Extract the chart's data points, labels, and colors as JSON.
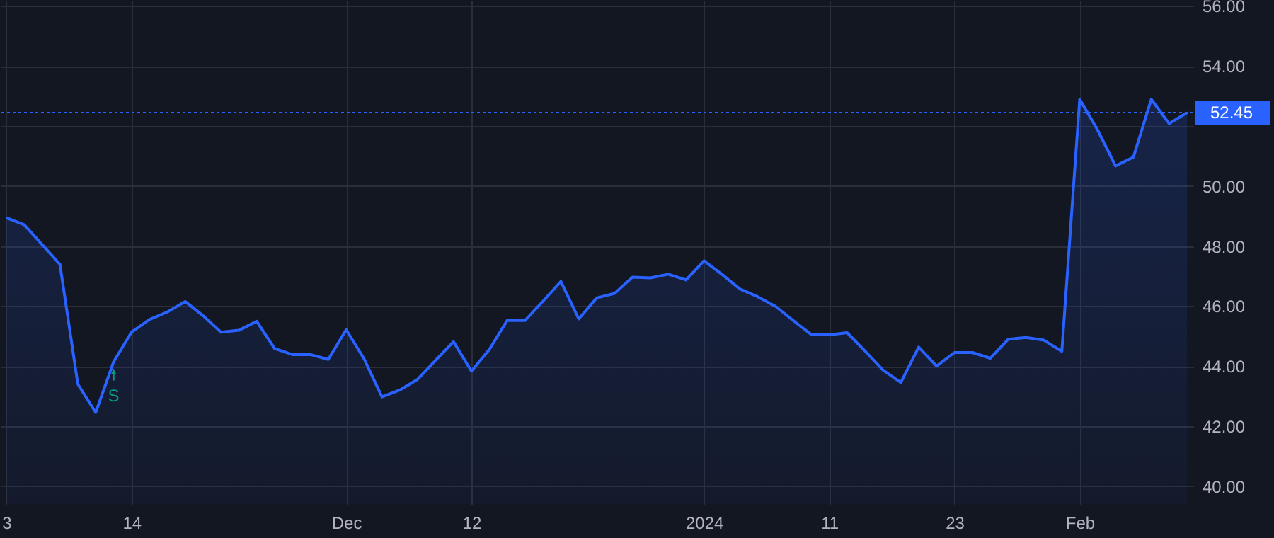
{
  "chart_data": {
    "type": "area",
    "categories": [
      "3",
      null,
      null,
      null,
      null,
      null,
      null,
      "14",
      null,
      null,
      null,
      null,
      null,
      null,
      null,
      null,
      null,
      null,
      null,
      "Dec",
      null,
      null,
      null,
      null,
      null,
      null,
      "12",
      null,
      null,
      null,
      null,
      null,
      null,
      null,
      null,
      null,
      null,
      null,
      null,
      "2024",
      null,
      null,
      null,
      null,
      null,
      null,
      "11",
      null,
      null,
      null,
      null,
      null,
      null,
      "23",
      null,
      null,
      null,
      null,
      null,
      null,
      "Feb",
      null,
      null,
      null,
      null,
      null,
      null
    ],
    "series": [
      {
        "color": "#2962ff",
        "values": [
          48.94,
          48.71,
          48.05,
          47.39,
          43.4,
          42.45,
          44.14,
          45.13,
          45.55,
          45.8,
          46.15,
          45.68,
          45.13,
          45.19,
          45.49,
          44.58,
          44.38,
          44.38,
          44.22,
          45.21,
          44.24,
          42.97,
          43.2,
          43.56,
          44.19,
          44.81,
          43.83,
          44.55,
          45.52,
          45.52,
          46.16,
          46.82,
          45.57,
          46.27,
          46.42,
          46.96,
          46.94,
          47.06,
          46.87,
          47.51,
          47.06,
          46.57,
          46.31,
          45.99,
          45.51,
          45.05,
          45.04,
          45.11,
          44.5,
          43.87,
          43.45,
          44.63,
          44.0,
          44.45,
          44.45,
          44.26,
          44.89,
          44.95,
          44.86,
          44.49,
          52.89,
          51.87,
          50.67,
          50.96,
          52.89,
          52.08,
          52.45
        ]
      }
    ],
    "ylim": [
      39.4,
      56.2
    ],
    "yticks": [
      {
        "value": 40,
        "label": "40.00"
      },
      {
        "value": 42,
        "label": "42.00"
      },
      {
        "value": 44,
        "label": "44.00"
      },
      {
        "value": 46,
        "label": "46.00"
      },
      {
        "value": 48,
        "label": "48.00"
      },
      {
        "value": 50,
        "label": "50.00"
      },
      {
        "value": 52,
        "label": null
      },
      {
        "value": 54,
        "label": "54.00"
      },
      {
        "value": 56,
        "label": "56.00"
      }
    ],
    "grid": true,
    "ref_lines": [
      {
        "axis": "y",
        "value": 52.45,
        "label": "52.45",
        "color": "#2962ff",
        "line_style": "dotted"
      }
    ],
    "annotations": [
      "S"
    ]
  }
}
